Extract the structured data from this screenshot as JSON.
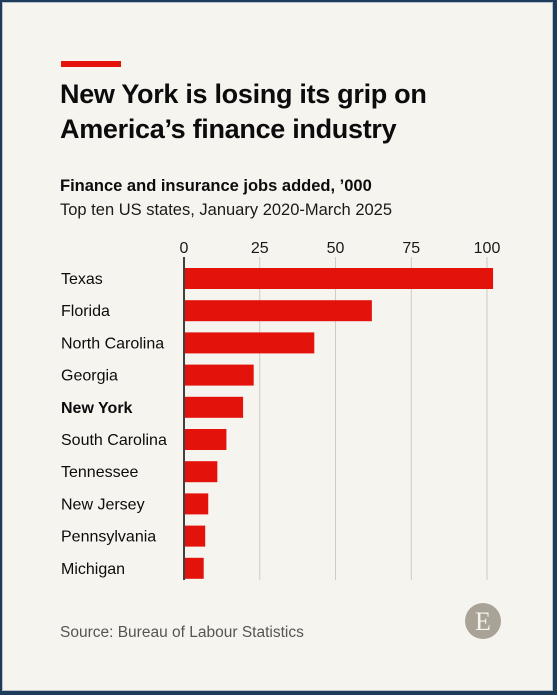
{
  "title": "New York is losing its grip on America’s finance industry",
  "subtitle": "Finance and insurance jobs added, ’000",
  "subtitle2": "Top ten US states, January 2020-March 2025",
  "source": "Source: Bureau of Labour Statistics",
  "logo_letter": "E",
  "colors": {
    "accent": "#e3120b",
    "bar": "#e3120b",
    "background": "#f6f4ef",
    "gridline": "#cfcac2",
    "logo": "#a9a397"
  },
  "chart_data": {
    "type": "bar",
    "orientation": "horizontal",
    "categories": [
      "Texas",
      "Florida",
      "North Carolina",
      "Georgia",
      "New York",
      "South Carolina",
      "Tennessee",
      "New Jersey",
      "Pennsylvania",
      "Michigan"
    ],
    "values": [
      102,
      62,
      43,
      23,
      19.5,
      14,
      11,
      8,
      7,
      6.5
    ],
    "highlight": "New York",
    "xticks": [
      0,
      25,
      50,
      75,
      100
    ],
    "xlim": [
      0,
      100
    ],
    "xaxis_position": "top",
    "grid": true
  }
}
